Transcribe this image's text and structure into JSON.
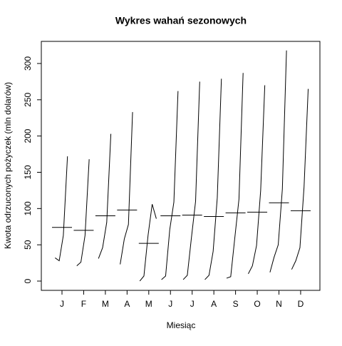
{
  "chart_data": {
    "type": "monthplot",
    "title": "Wykres wahań sezonowych",
    "xlabel": "Miesiąc",
    "ylabel": "Kwota odrzuconych pożyczek (mln dolarów)",
    "categories": [
      "J",
      "F",
      "M",
      "A",
      "M",
      "J",
      "J",
      "A",
      "S",
      "O",
      "N",
      "D"
    ],
    "values": [
      [
        32,
        28,
        63,
        172
      ],
      [
        21,
        26,
        63,
        168
      ],
      [
        31,
        46,
        81,
        203
      ],
      [
        23,
        58,
        78,
        233
      ],
      [
        0,
        7,
        63,
        106,
        86
      ],
      [
        2,
        7,
        71,
        109,
        262
      ],
      [
        2,
        8,
        60,
        110,
        275
      ],
      [
        2,
        8,
        41,
        115,
        279
      ],
      [
        4,
        6,
        60,
        113,
        287
      ],
      [
        10,
        21,
        49,
        125,
        270
      ],
      [
        12,
        33,
        50,
        127,
        318
      ],
      [
        16,
        28,
        46,
        130,
        265
      ]
    ],
    "means": [
      74,
      70,
      90,
      98,
      52,
      90,
      91,
      89,
      94,
      95,
      108,
      97
    ],
    "color": "#000000",
    "ylim": [
      -12.8,
      330.5
    ],
    "yticks": [
      0,
      50,
      100,
      150,
      200,
      250,
      300
    ]
  }
}
